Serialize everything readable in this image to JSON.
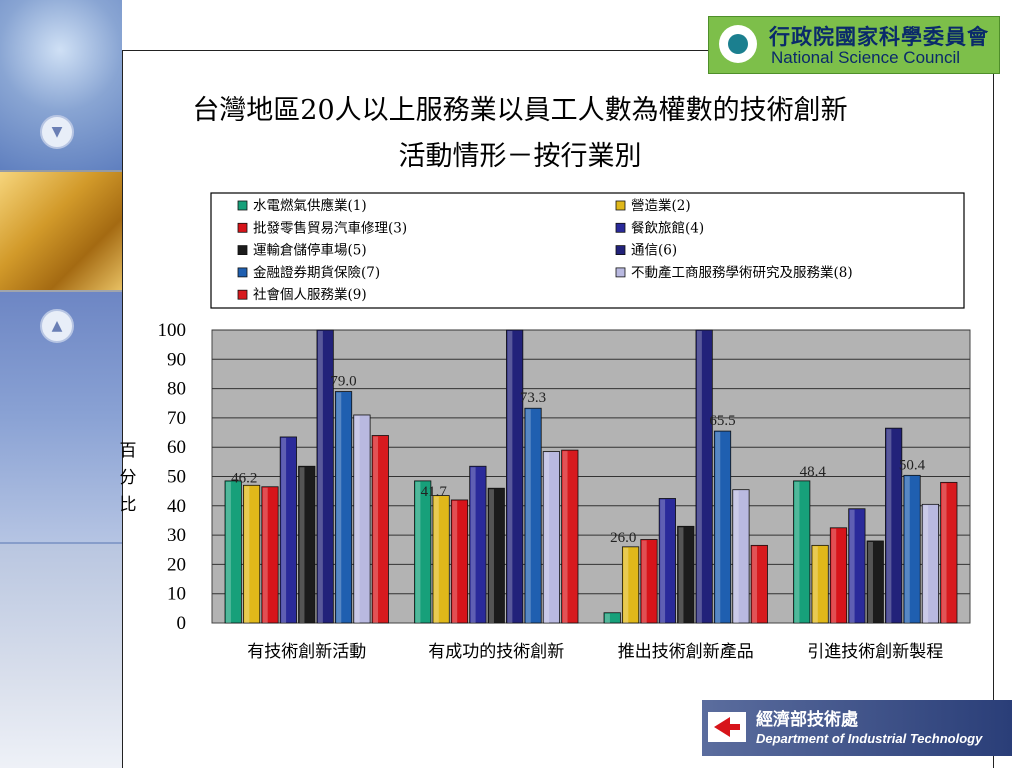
{
  "title_line1": "台灣地區20人以上服務業以員工人數為權數的技術創新",
  "title_line2": "活動情形－按行業別",
  "logos": {
    "nsc_zh": "行政院國家科學委員會",
    "nsc_en": "National Science Council",
    "moea_zh": "經濟部技術處",
    "moea_en": "Department of Industrial Technology"
  },
  "chart_data": {
    "type": "bar",
    "ylabel": "百分比",
    "ylim": [
      0,
      100
    ],
    "yticks": [
      0,
      10,
      20,
      30,
      40,
      50,
      60,
      70,
      80,
      90,
      100
    ],
    "grid": true,
    "legend_position": "top",
    "categories": [
      "有技術創新活動",
      "有成功的技術創新",
      "推出技術創新產品",
      "引進技術創新製程"
    ],
    "category_totals": [
      46.2,
      41.7,
      26.0,
      48.4
    ],
    "category_total_labels": [
      "46.2",
      "41.7",
      "26.0",
      "48.4"
    ],
    "series": [
      {
        "name": "水電燃氣供應業(1)",
        "color": "#17a07a",
        "values": [
          48.5,
          48.5,
          3.5,
          48.5
        ]
      },
      {
        "name": "營造業(2)",
        "color": "#e0b81a",
        "values": [
          47,
          43.5,
          26,
          26.5
        ]
      },
      {
        "name": "批發零售貿易汽車修理(3)",
        "color": "#d7141a",
        "values": [
          46.5,
          42,
          28.5,
          32.5
        ]
      },
      {
        "name": "餐飲旅館(4)",
        "color": "#2a2a9a",
        "values": [
          63.5,
          53.5,
          42.5,
          39
        ]
      },
      {
        "name": "運輸倉儲停車場(5)",
        "color": "#1c1c1c",
        "values": [
          53.5,
          46,
          33,
          28
        ]
      },
      {
        "name": "通信(6)",
        "color": "#22227a",
        "values": [
          100,
          100,
          100,
          66.5
        ]
      },
      {
        "name": "金融證券期貨保險(7)",
        "color": "#1f5fb0",
        "values": [
          79,
          73.3,
          65.5,
          50.4
        ]
      },
      {
        "name": "不動產工商服務學術研究及服務業(8)",
        "color": "#b9b9e0",
        "values": [
          71,
          58.5,
          45.5,
          40.5
        ]
      },
      {
        "name": "社會個人服務業(9)",
        "color": "#d71a1e",
        "values": [
          64,
          59,
          26.5,
          48
        ]
      }
    ],
    "value_labels": [
      {
        "category_index": 0,
        "series_index": 6,
        "text": "79.0"
      },
      {
        "category_index": 1,
        "series_index": 6,
        "text": "73.3"
      },
      {
        "category_index": 2,
        "series_index": 6,
        "text": "65.5"
      },
      {
        "category_index": 3,
        "series_index": 6,
        "text": "50.4"
      }
    ]
  }
}
